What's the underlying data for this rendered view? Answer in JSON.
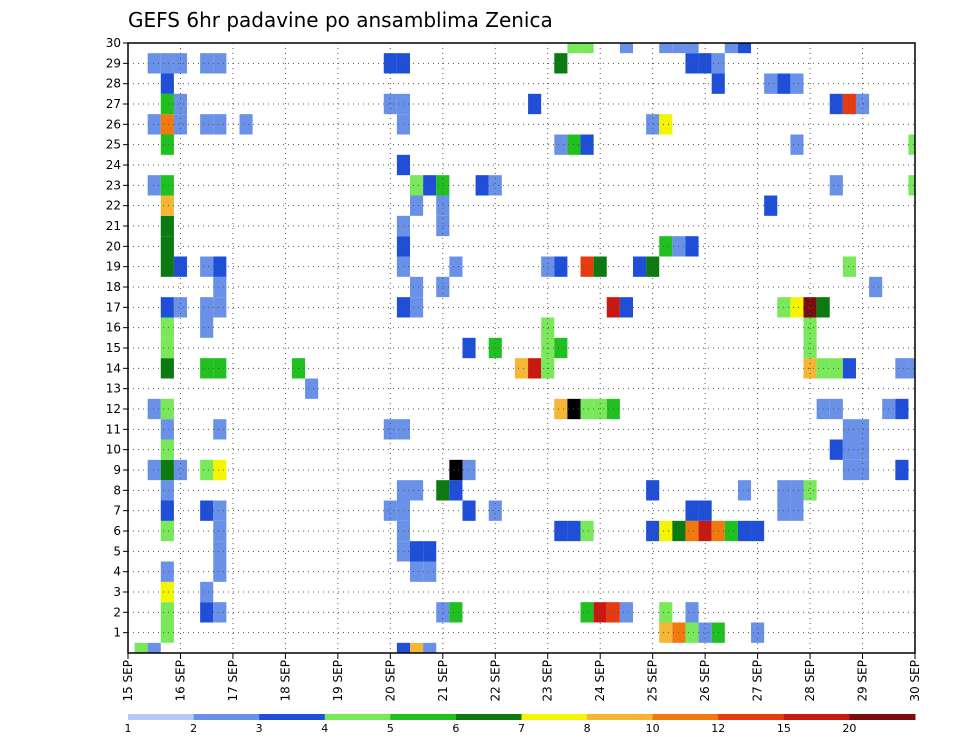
{
  "chart_data": {
    "type": "heatmap",
    "title": "GEFS 6hr padavine po ansamblima Zenica",
    "xlabel": "",
    "ylabel": "",
    "x_ticks": [
      "15 SEP",
      "16 SEP",
      "17 SEP",
      "18 SEP",
      "19 SEP",
      "20 SEP",
      "21 SEP",
      "22 SEP",
      "23 SEP",
      "24 SEP",
      "25 SEP",
      "26 SEP",
      "27 SEP",
      "28 SEP",
      "29 SEP",
      "30 SEP"
    ],
    "x_range": [
      15.0,
      30.0
    ],
    "y_ticks": [
      1,
      2,
      3,
      4,
      5,
      6,
      7,
      8,
      9,
      10,
      11,
      12,
      13,
      14,
      15,
      16,
      17,
      18,
      19,
      20,
      21,
      22,
      23,
      24,
      25,
      26,
      27,
      28,
      29,
      30
    ],
    "y_range": [
      0,
      30
    ],
    "grid": true,
    "colorbar": {
      "labels": [
        "1",
        "2",
        "3",
        "4",
        "5",
        "6",
        "7",
        "8",
        "10",
        "12",
        "15",
        "20"
      ],
      "colors": [
        "#b7c9f5",
        "#6a91e8",
        "#1f4fd8",
        "#79e85a",
        "#20c020",
        "#0b7a10",
        "#f5f500",
        "#f5b535",
        "#f07a10",
        "#e63a10",
        "#c81810",
        "#7a0c0c"
      ],
      "placement": "bottom"
    },
    "cells": [
      [
        15.25,
        0,
        3
      ],
      [
        15.5,
        0,
        1
      ],
      [
        20.25,
        0,
        2
      ],
      [
        20.5,
        0,
        7
      ],
      [
        20.75,
        0,
        1
      ],
      [
        15.75,
        1,
        3
      ],
      [
        25.25,
        1,
        7
      ],
      [
        25.5,
        1,
        8
      ],
      [
        25.75,
        1,
        3
      ],
      [
        26,
        1,
        1
      ],
      [
        26.25,
        1,
        4
      ],
      [
        27.0,
        1,
        1
      ],
      [
        15.75,
        2,
        3
      ],
      [
        16.5,
        2,
        2
      ],
      [
        16.75,
        2,
        1
      ],
      [
        21.0,
        2,
        1
      ],
      [
        21.25,
        2,
        4
      ],
      [
        23.75,
        2,
        4
      ],
      [
        24.0,
        2,
        10
      ],
      [
        24.25,
        2,
        9
      ],
      [
        24.5,
        2,
        1
      ],
      [
        25.25,
        2,
        3
      ],
      [
        25.75,
        2,
        1
      ],
      [
        15.75,
        3,
        6
      ],
      [
        16.5,
        3,
        1
      ],
      [
        15.75,
        4,
        1
      ],
      [
        16.75,
        4,
        1
      ],
      [
        20.5,
        4,
        1
      ],
      [
        20.75,
        4,
        1
      ],
      [
        16.75,
        5,
        1
      ],
      [
        20.25,
        5,
        1
      ],
      [
        20.5,
        5,
        2
      ],
      [
        20.75,
        5,
        2
      ],
      [
        15.75,
        6,
        3
      ],
      [
        16.75,
        6,
        1
      ],
      [
        20.25,
        6,
        1
      ],
      [
        23.25,
        6,
        2
      ],
      [
        23.5,
        6,
        2
      ],
      [
        23.75,
        6,
        3
      ],
      [
        25.0,
        6,
        2
      ],
      [
        25.25,
        6,
        6
      ],
      [
        25.5,
        6,
        5
      ],
      [
        25.75,
        6,
        8
      ],
      [
        26,
        6,
        10
      ],
      [
        26.25,
        6,
        8
      ],
      [
        26.5,
        6,
        4
      ],
      [
        26.75,
        6,
        2
      ],
      [
        27.0,
        6,
        2
      ],
      [
        15.75,
        7,
        2
      ],
      [
        16.5,
        7,
        2
      ],
      [
        16.75,
        7,
        1
      ],
      [
        20.0,
        7,
        1
      ],
      [
        20.25,
        7,
        1
      ],
      [
        21.5,
        7,
        2
      ],
      [
        22.0,
        7,
        1
      ],
      [
        25.75,
        7,
        2
      ],
      [
        26,
        7,
        2
      ],
      [
        27.5,
        7,
        1
      ],
      [
        27.75,
        7,
        1
      ],
      [
        15.75,
        8,
        1
      ],
      [
        20.25,
        8,
        1
      ],
      [
        20.5,
        8,
        1
      ],
      [
        21.0,
        8,
        5
      ],
      [
        21.25,
        8,
        2
      ],
      [
        25.0,
        8,
        2
      ],
      [
        26.75,
        8,
        1
      ],
      [
        27.5,
        8,
        1
      ],
      [
        27.75,
        8,
        1
      ],
      [
        28.0,
        8,
        3
      ],
      [
        15.5,
        9,
        1
      ],
      [
        15.75,
        9,
        5
      ],
      [
        16.0,
        9,
        1
      ],
      [
        16.5,
        9,
        3
      ],
      [
        16.75,
        9,
        6
      ],
      [
        21.25,
        9,
        12
      ],
      [
        21.5,
        9,
        1
      ],
      [
        28.75,
        9,
        1
      ],
      [
        29,
        9,
        1
      ],
      [
        29.75,
        9,
        2
      ],
      [
        15.75,
        10,
        3
      ],
      [
        28.5,
        10,
        2
      ],
      [
        28.75,
        10,
        1
      ],
      [
        29,
        10,
        1
      ],
      [
        15.75,
        11,
        1
      ],
      [
        16.75,
        11,
        1
      ],
      [
        20.0,
        11,
        1
      ],
      [
        20.25,
        11,
        1
      ],
      [
        28.75,
        11,
        1
      ],
      [
        29,
        11,
        1
      ],
      [
        15.5,
        12,
        1
      ],
      [
        15.75,
        12,
        3
      ],
      [
        23.25,
        12,
        7
      ],
      [
        23.5,
        12,
        12
      ],
      [
        23.75,
        12,
        3
      ],
      [
        24.0,
        12,
        3
      ],
      [
        24.25,
        12,
        4
      ],
      [
        28.25,
        12,
        1
      ],
      [
        28.5,
        12,
        1
      ],
      [
        29.5,
        12,
        1
      ],
      [
        29.75,
        12,
        2
      ],
      [
        18.5,
        13,
        1
      ],
      [
        15.75,
        14,
        5
      ],
      [
        16.5,
        14,
        4
      ],
      [
        16.75,
        14,
        4
      ],
      [
        18.25,
        14,
        4
      ],
      [
        22.5,
        14,
        7
      ],
      [
        22.75,
        14,
        10
      ],
      [
        23.0,
        14,
        3
      ],
      [
        28.0,
        14,
        7
      ],
      [
        28.25,
        14,
        3
      ],
      [
        28.5,
        14,
        3
      ],
      [
        28.75,
        14,
        2
      ],
      [
        29.75,
        14,
        1
      ],
      [
        30,
        14,
        1
      ],
      [
        15.75,
        15,
        3
      ],
      [
        21.5,
        15,
        2
      ],
      [
        22.0,
        15,
        4
      ],
      [
        23.0,
        15,
        3
      ],
      [
        23.25,
        15,
        4
      ],
      [
        28.0,
        15,
        3
      ],
      [
        15.75,
        16,
        3
      ],
      [
        16.5,
        16,
        1
      ],
      [
        23.0,
        16,
        3
      ],
      [
        28.0,
        16,
        3
      ],
      [
        15.75,
        17,
        2
      ],
      [
        16.0,
        17,
        1
      ],
      [
        16.5,
        17,
        1
      ],
      [
        16.75,
        17,
        1
      ],
      [
        20.25,
        17,
        2
      ],
      [
        20.5,
        17,
        1
      ],
      [
        24.25,
        17,
        10
      ],
      [
        24.5,
        17,
        2
      ],
      [
        27.5,
        17,
        3
      ],
      [
        27.75,
        17,
        6
      ],
      [
        28.0,
        17,
        11
      ],
      [
        28.25,
        17,
        5
      ],
      [
        16.75,
        18,
        1
      ],
      [
        20.5,
        18,
        1
      ],
      [
        21.0,
        18,
        1
      ],
      [
        29.25,
        18,
        1
      ],
      [
        15.75,
        19,
        5
      ],
      [
        16.0,
        19,
        2
      ],
      [
        16.5,
        19,
        1
      ],
      [
        16.75,
        19,
        2
      ],
      [
        20.25,
        19,
        1
      ],
      [
        21.25,
        19,
        1
      ],
      [
        23.0,
        19,
        1
      ],
      [
        23.25,
        19,
        2
      ],
      [
        23.75,
        19,
        9
      ],
      [
        24.0,
        19,
        5
      ],
      [
        24.75,
        19,
        2
      ],
      [
        25.0,
        19,
        5
      ],
      [
        28.75,
        19,
        3
      ],
      [
        15.75,
        20,
        5
      ],
      [
        20.25,
        20,
        2
      ],
      [
        25.25,
        20,
        4
      ],
      [
        25.5,
        20,
        1
      ],
      [
        25.75,
        20,
        2
      ],
      [
        15.75,
        21,
        5
      ],
      [
        20.25,
        21,
        1
      ],
      [
        21.0,
        21,
        1
      ],
      [
        15.75,
        22,
        7
      ],
      [
        20.5,
        22,
        1
      ],
      [
        21.0,
        22,
        1
      ],
      [
        27.25,
        22,
        2
      ],
      [
        15.5,
        23,
        1
      ],
      [
        15.75,
        23,
        4
      ],
      [
        20.5,
        23,
        3
      ],
      [
        20.75,
        23,
        2
      ],
      [
        21.0,
        23,
        4
      ],
      [
        21.75,
        23,
        2
      ],
      [
        22.0,
        23,
        1
      ],
      [
        28.5,
        23,
        1
      ],
      [
        30,
        23,
        3
      ],
      [
        20.25,
        24,
        2
      ],
      [
        15.75,
        25,
        4
      ],
      [
        23.25,
        25,
        1
      ],
      [
        23.5,
        25,
        4
      ],
      [
        23.75,
        25,
        2
      ],
      [
        27.75,
        25,
        1
      ],
      [
        30,
        25,
        3
      ],
      [
        15.5,
        26,
        1
      ],
      [
        15.75,
        26,
        8
      ],
      [
        16.0,
        26,
        1
      ],
      [
        16.5,
        26,
        1
      ],
      [
        16.75,
        26,
        1
      ],
      [
        17.25,
        26,
        1
      ],
      [
        20.25,
        26,
        1
      ],
      [
        25.0,
        26,
        1
      ],
      [
        25.25,
        26,
        6
      ],
      [
        15.75,
        27,
        4
      ],
      [
        16.0,
        27,
        1
      ],
      [
        20.0,
        27,
        1
      ],
      [
        20.25,
        27,
        1
      ],
      [
        22.75,
        27,
        2
      ],
      [
        28.5,
        27,
        2
      ],
      [
        28.75,
        27,
        9
      ],
      [
        29,
        27,
        1
      ],
      [
        15.75,
        28,
        2
      ],
      [
        26.25,
        28,
        2
      ],
      [
        27.25,
        28,
        1
      ],
      [
        27.5,
        28,
        2
      ],
      [
        27.75,
        28,
        1
      ],
      [
        15.5,
        29,
        1
      ],
      [
        15.75,
        29,
        1
      ],
      [
        16.0,
        29,
        1
      ],
      [
        16.5,
        29,
        1
      ],
      [
        16.75,
        29,
        1
      ],
      [
        20.0,
        29,
        2
      ],
      [
        20.25,
        29,
        2
      ],
      [
        23.25,
        29,
        5
      ],
      [
        25.75,
        29,
        2
      ],
      [
        26,
        29,
        2
      ],
      [
        26.25,
        29,
        1
      ],
      [
        23.5,
        30,
        3
      ],
      [
        23.75,
        30,
        3
      ],
      [
        24.5,
        30,
        1
      ],
      [
        25.25,
        30,
        1
      ],
      [
        25.5,
        30,
        1
      ],
      [
        25.75,
        30,
        1
      ],
      [
        26.5,
        30,
        1
      ],
      [
        26.75,
        30,
        2
      ]
    ]
  }
}
